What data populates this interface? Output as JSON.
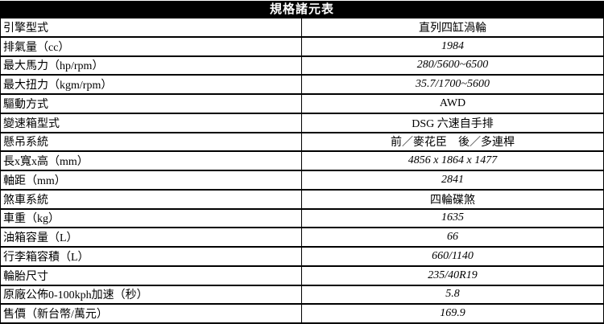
{
  "table": {
    "title": "規格諸元表",
    "colors": {
      "header_bg": "#000000",
      "header_text": "#ffffff",
      "border": "#000000",
      "row_bg": "#ffffff",
      "text": "#000000"
    },
    "rows": [
      {
        "label": "引擎型式",
        "value": "直列四缸渦輪",
        "numeric": false
      },
      {
        "label": "排氣量（cc）",
        "value": "1984",
        "numeric": true
      },
      {
        "label": "最大馬力（hp/rpm）",
        "value": "280/5600~6500",
        "numeric": true
      },
      {
        "label": "最大扭力（kgm/rpm）",
        "value": "35.7/1700~5600",
        "numeric": true
      },
      {
        "label": "驅動方式",
        "value": "AWD",
        "numeric": false
      },
      {
        "label": "變速箱型式",
        "value": "DSG 六速自手排",
        "numeric": false
      },
      {
        "label": "懸吊系統",
        "value": "前／麥花臣　後／多連桿",
        "numeric": false
      },
      {
        "label": "長x寬x高（mm）",
        "value": "4856 x 1864 x 1477",
        "numeric": true
      },
      {
        "label": "軸距（mm）",
        "value": "2841",
        "numeric": true
      },
      {
        "label": "煞車系統",
        "value": "四輪碟煞",
        "numeric": false
      },
      {
        "label": "車重（kg）",
        "value": "1635",
        "numeric": true
      },
      {
        "label": "油箱容量（L）",
        "value": "66",
        "numeric": true
      },
      {
        "label": "行李箱容積（L）",
        "value": "660/1140",
        "numeric": true
      },
      {
        "label": "輪胎尺寸",
        "value": "235/40R19",
        "numeric": true
      },
      {
        "label": "原廠公佈0-100kph加速（秒）",
        "value": "5.8",
        "numeric": true
      },
      {
        "label": "售價（新台幣/萬元）",
        "value": "169.9",
        "numeric": true
      }
    ]
  }
}
